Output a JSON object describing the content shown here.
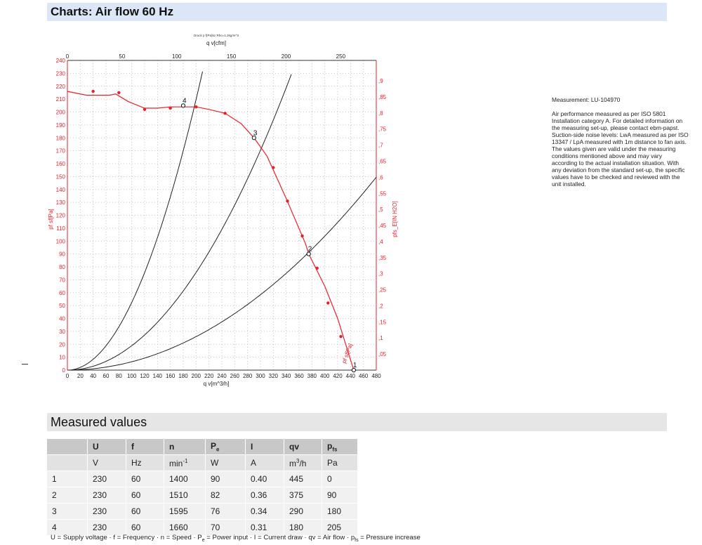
{
  "header": {
    "title": "Charts: Air flow 60 Hz"
  },
  "measured": {
    "title": "Measured values",
    "columns": [
      {
        "sym": "",
        "sub": ""
      },
      {
        "sym": "U",
        "sub": ""
      },
      {
        "sym": "f",
        "sub": ""
      },
      {
        "sym": "n",
        "sub": ""
      },
      {
        "sym": "P",
        "sub": "e"
      },
      {
        "sym": "I",
        "sub": ""
      },
      {
        "sym": "qv",
        "sub": ""
      },
      {
        "sym": "p",
        "sub": "fs"
      }
    ],
    "units": [
      {
        "t": "",
        "sup": ""
      },
      {
        "t": "V",
        "sup": ""
      },
      {
        "t": "Hz",
        "sup": ""
      },
      {
        "t": "min",
        "sup": "-1"
      },
      {
        "t": "W",
        "sup": ""
      },
      {
        "t": "A",
        "sup": ""
      },
      {
        "t": "m",
        "sup": "3",
        "after": "/h"
      },
      {
        "t": "Pa",
        "sup": ""
      }
    ],
    "rows": [
      [
        "1",
        "230",
        "60",
        "1400",
        "90",
        "0.40",
        "445",
        "0"
      ],
      [
        "2",
        "230",
        "60",
        "1510",
        "82",
        "0.36",
        "375",
        "90"
      ],
      [
        "3",
        "230",
        "60",
        "1595",
        "76",
        "0.34",
        "290",
        "180"
      ],
      [
        "4",
        "230",
        "60",
        "1660",
        "70",
        "0.31",
        "180",
        "205"
      ]
    ],
    "legend": [
      {
        "t": "U = Supply voltage · f = Frequency · n = Speed · P"
      },
      {
        "sub": "e"
      },
      {
        "t": " = Power input · I = Current draw · qv = Air flow · p"
      },
      {
        "sub": "fs"
      },
      {
        "t": " = Pressure increase"
      }
    ]
  },
  "description": {
    "measurement": "Measurement: LU-104970",
    "text": "Air performance measured as per ISO 5801 Installation category A. For detailed information on the measuring set-up, please contact ebm-papst. Suction-side noise levels: LwA measured as per ISO 13347 / LpA measured with 1m distance to fan axis. The values given are valid under the measuring conditions mentioned above and may vary according to the actual installation situation. With any deviation from the standard set-up, the specific values have to be checked and reviewed with the unit installed."
  },
  "colors": {
    "curve": "#e8202a",
    "system": "#222222",
    "grid": "#b5b5b5"
  },
  "chart_data": {
    "type": "line",
    "caption": "Druck p f(Pa)bz Rho=1,2kg/m^3",
    "xlabel": "q v[m^3/h]",
    "xlabel_top": "q v[cfm]",
    "ylabel_left": "pf sf[Pa]",
    "ylabel_right": "pfs_E[IN H2O]",
    "xlim": [
      0,
      480
    ],
    "ylim": [
      0,
      240
    ],
    "x_ticks": [
      0,
      20,
      40,
      60,
      80,
      100,
      120,
      140,
      160,
      180,
      200,
      220,
      240,
      260,
      280,
      300,
      320,
      340,
      360,
      380,
      400,
      420,
      440,
      460,
      480
    ],
    "y_ticks": [
      0,
      10,
      20,
      30,
      40,
      50,
      60,
      70,
      80,
      90,
      100,
      110,
      120,
      130,
      140,
      150,
      160,
      170,
      180,
      190,
      200,
      210,
      220,
      230,
      240
    ],
    "top_ticks": [
      0,
      50,
      100,
      150,
      200,
      250
    ],
    "right_ticks": [
      ",05",
      ",1",
      ",15",
      ",2",
      ",25",
      ",3",
      ",35",
      ",4",
      ",45",
      ",5",
      ",55",
      ",6",
      ",65",
      ",7",
      ",75",
      ",8",
      ",85",
      ",9"
    ],
    "fan_curve_label": "pf sf[Pa]",
    "series": [
      {
        "points": [
          [
            0,
            216
          ],
          [
            30,
            213
          ],
          [
            45,
            213
          ],
          [
            65,
            213
          ],
          [
            75,
            214
          ],
          [
            95,
            208
          ],
          [
            120,
            203
          ],
          [
            140,
            203
          ],
          [
            160,
            204
          ],
          [
            180,
            204
          ],
          [
            200,
            204
          ],
          [
            220,
            202
          ],
          [
            245,
            199
          ],
          [
            270,
            191
          ],
          [
            290,
            180
          ],
          [
            310,
            166
          ],
          [
            340,
            133
          ],
          [
            370,
            98
          ],
          [
            375,
            90
          ],
          [
            400,
            65
          ],
          [
            420,
            40
          ],
          [
            445,
            0
          ]
        ]
      },
      {
        "markers": [
          [
            40,
            216
          ],
          [
            80,
            215
          ],
          [
            120,
            202
          ],
          [
            160,
            203
          ],
          [
            200,
            204
          ],
          [
            245,
            199
          ],
          [
            320,
            157
          ],
          [
            342,
            131
          ],
          [
            365,
            104
          ],
          [
            388,
            79
          ],
          [
            405,
            52
          ],
          [
            425,
            26
          ]
        ]
      }
    ],
    "system_curves": [
      {
        "k": 0.005247
      },
      {
        "k": 0.001893
      },
      {
        "k": 0.000649
      }
    ],
    "operating_points": [
      {
        "label": "1",
        "x": 445,
        "y": 0
      },
      {
        "label": "2",
        "x": 375,
        "y": 90
      },
      {
        "label": "3",
        "x": 290,
        "y": 180
      },
      {
        "label": "4",
        "x": 180,
        "y": 205
      }
    ]
  }
}
